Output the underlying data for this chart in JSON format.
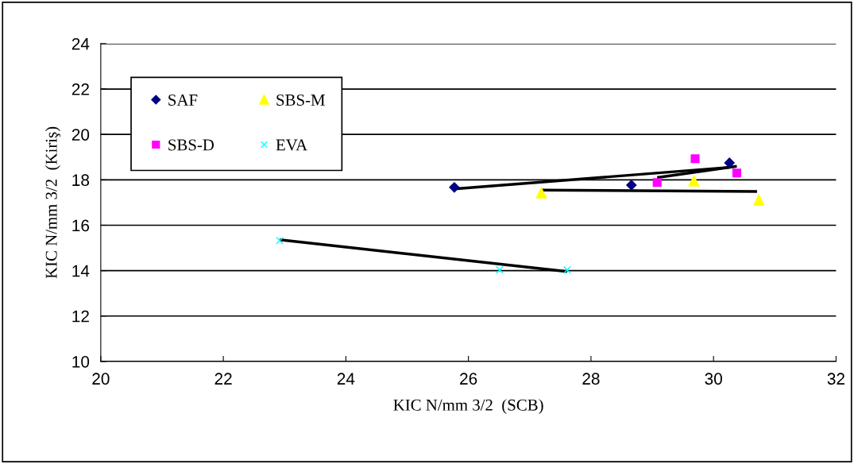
{
  "chart_data": {
    "type": "scatter",
    "xlabel": "KIC N/mm 3/2  (SCB)",
    "ylabel": "KIC N/mm 3/2  (Kiriş)",
    "xlim": [
      20,
      32
    ],
    "xticks": [
      20,
      22,
      24,
      26,
      28,
      30,
      32
    ],
    "ylim": [
      10,
      24
    ],
    "yticks": [
      10,
      12,
      14,
      16,
      18,
      20,
      22,
      24
    ],
    "grid": "y",
    "legend": "top left",
    "series": [
      {
        "name": "SAF",
        "color": "#000080",
        "marker": "diamond",
        "x": [
          25.77,
          28.66,
          30.26
        ],
        "values": [
          17.67,
          17.77,
          18.75
        ]
      },
      {
        "name": "SBS-D",
        "color": "#ff00ff",
        "marker": "square",
        "x": [
          29.08,
          29.7,
          30.38
        ],
        "values": [
          17.88,
          18.93,
          18.3
        ]
      },
      {
        "name": "SBS-M",
        "color": "#ffff00",
        "marker": "triangle",
        "x": [
          27.19,
          29.68,
          30.74
        ],
        "values": [
          17.42,
          17.95,
          17.11
        ]
      },
      {
        "name": "EVA",
        "color": "#00ffff",
        "marker": "cross",
        "x": [
          22.92,
          26.51,
          27.61
        ],
        "values": [
          15.32,
          14.03,
          14.03
        ]
      },
      {
        "type": "line",
        "color": "#000000",
        "x": [
          25.77,
          30.26
        ],
        "values": [
          17.6,
          18.55
        ]
      },
      {
        "type": "line",
        "color": "#000000",
        "x": [
          29.08,
          30.38
        ],
        "values": [
          18.1,
          18.6
        ]
      },
      {
        "type": "line",
        "color": "#000000",
        "x": [
          27.19,
          30.71
        ],
        "values": [
          17.55,
          17.49
        ]
      },
      {
        "type": "line",
        "color": "#000000",
        "x": [
          22.92,
          27.61
        ],
        "values": [
          15.36,
          13.96
        ]
      }
    ]
  }
}
